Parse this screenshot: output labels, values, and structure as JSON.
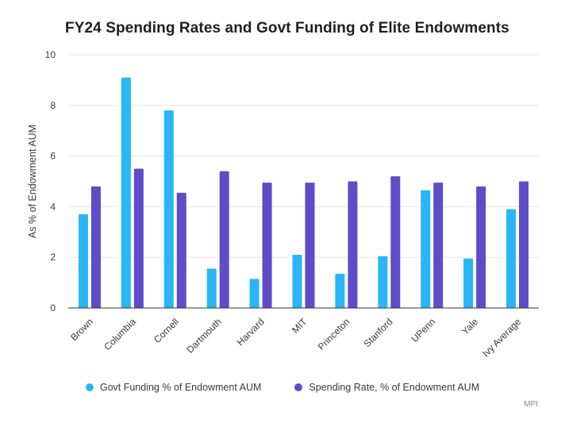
{
  "title": "FY24 Spending Rates and Govt Funding of Elite Endowments",
  "source": "MPI",
  "colors": {
    "govt": "#29B5F6",
    "spending": "#5E4CC9",
    "grid": "#e6e6e6",
    "axis": "#333333"
  },
  "chart_data": {
    "type": "bar",
    "title": "FY24 Spending Rates and Govt Funding of Elite Endowments",
    "xlabel": "",
    "ylabel": "As % of Endowment AUM",
    "ylim": [
      0,
      10
    ],
    "yticks": [
      0,
      2,
      4,
      6,
      8,
      10
    ],
    "grid": true,
    "legend": "bottom-center",
    "categories": [
      "Brown",
      "Columbia",
      "Cornell",
      "Dartmouth",
      "Harvard",
      "MIT",
      "Princeton",
      "Stanford",
      "UPenn",
      "Yale",
      "Ivy Average"
    ],
    "series": [
      {
        "name": "Govt Funding % of Endowment AUM",
        "values": [
          3.7,
          9.1,
          7.8,
          1.55,
          1.15,
          2.1,
          1.35,
          2.05,
          4.65,
          1.95,
          3.9
        ]
      },
      {
        "name": "Spending Rate, % of Endowment AUM",
        "values": [
          4.8,
          5.5,
          4.55,
          5.4,
          4.95,
          4.95,
          5.0,
          5.2,
          4.95,
          4.8,
          5.0
        ]
      }
    ]
  }
}
